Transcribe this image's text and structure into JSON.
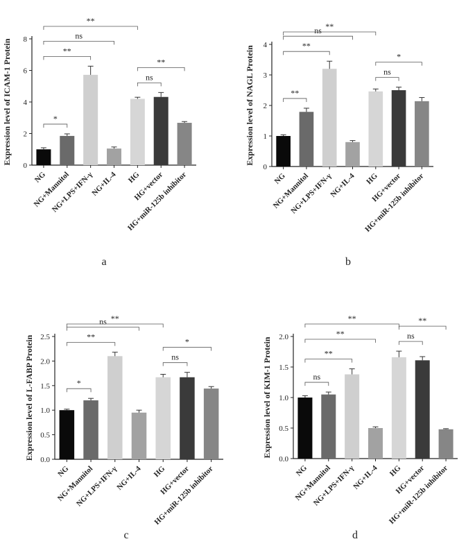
{
  "categories": [
    "NG",
    "NG+Mannitol",
    "NG+LPS+IFN-γ",
    "NG+IL-4",
    "HG",
    "HG+vector",
    "HG+miR-125b inhibitor"
  ],
  "bar_colors": [
    "#0a0a0a",
    "#6a6a6a",
    "#cfcfcf",
    "#a2a2a2",
    "#d6d6d6",
    "#3a3a3a",
    "#868686"
  ],
  "chart_data": [
    {
      "type": "bar",
      "panel_label": "a",
      "ylabel": "Expression level of ICAM-1 Protein",
      "ylim": [
        0,
        8
      ],
      "yticks": [
        0,
        2,
        4,
        6,
        8
      ],
      "values": [
        1.0,
        1.85,
        5.72,
        1.05,
        4.2,
        4.32,
        2.68
      ],
      "errors": [
        0.1,
        0.13,
        0.55,
        0.1,
        0.1,
        0.28,
        0.08
      ],
      "significance": [
        {
          "from": 0,
          "to": 1,
          "label": "*"
        },
        {
          "from": 0,
          "to": 2,
          "label": "**"
        },
        {
          "from": 0,
          "to": 3,
          "label": "ns"
        },
        {
          "from": 0,
          "to": 4,
          "label": "**"
        },
        {
          "from": 4,
          "to": 5,
          "label": "ns"
        },
        {
          "from": 4,
          "to": 6,
          "label": "**"
        }
      ]
    },
    {
      "type": "bar",
      "panel_label": "b",
      "ylabel": "Expression level of NAGL Protein",
      "ylim": [
        0,
        4
      ],
      "yticks": [
        0,
        1,
        2,
        3,
        4
      ],
      "values": [
        1.0,
        1.79,
        3.2,
        0.8,
        2.46,
        2.5,
        2.14
      ],
      "errors": [
        0.04,
        0.12,
        0.25,
        0.05,
        0.08,
        0.1,
        0.12
      ],
      "significance": [
        {
          "from": 0,
          "to": 1,
          "label": "**"
        },
        {
          "from": 0,
          "to": 2,
          "label": "**"
        },
        {
          "from": 0,
          "to": 3,
          "label": "ns"
        },
        {
          "from": 0,
          "to": 4,
          "label": "**"
        },
        {
          "from": 4,
          "to": 5,
          "label": "ns"
        },
        {
          "from": 4,
          "to": 6,
          "label": "*"
        }
      ]
    },
    {
      "type": "bar",
      "panel_label": "c",
      "ylabel": "Expression level of L-FABP Protein",
      "ylim": [
        0,
        2.5
      ],
      "yticks": [
        0.0,
        0.5,
        1.0,
        1.5,
        2.0,
        2.5
      ],
      "values": [
        1.0,
        1.2,
        2.1,
        0.95,
        1.67,
        1.67,
        1.44
      ],
      "errors": [
        0.02,
        0.04,
        0.08,
        0.05,
        0.06,
        0.1,
        0.04
      ],
      "significance": [
        {
          "from": 0,
          "to": 1,
          "label": "*"
        },
        {
          "from": 0,
          "to": 2,
          "label": "**"
        },
        {
          "from": 0,
          "to": 3,
          "label": "ns"
        },
        {
          "from": 0,
          "to": 4,
          "label": "**"
        },
        {
          "from": 4,
          "to": 5,
          "label": "ns"
        },
        {
          "from": 4,
          "to": 6,
          "label": "*"
        }
      ]
    },
    {
      "type": "bar",
      "panel_label": "d",
      "ylabel": "Expression level of KIM-1 Protein",
      "ylim": [
        0,
        2.0
      ],
      "yticks": [
        0.0,
        0.5,
        1.0,
        1.5,
        2.0
      ],
      "values": [
        1.0,
        1.05,
        1.38,
        0.5,
        1.66,
        1.61,
        0.48
      ],
      "errors": [
        0.03,
        0.04,
        0.09,
        0.02,
        0.1,
        0.06,
        0.01
      ],
      "significance": [
        {
          "from": 0,
          "to": 1,
          "label": "ns"
        },
        {
          "from": 0,
          "to": 2,
          "label": "**"
        },
        {
          "from": 0,
          "to": 3,
          "label": "**"
        },
        {
          "from": 0,
          "to": 4,
          "label": "**"
        },
        {
          "from": 4,
          "to": 5,
          "label": "ns"
        },
        {
          "from": 4,
          "to": 6,
          "label": "**"
        }
      ]
    }
  ]
}
